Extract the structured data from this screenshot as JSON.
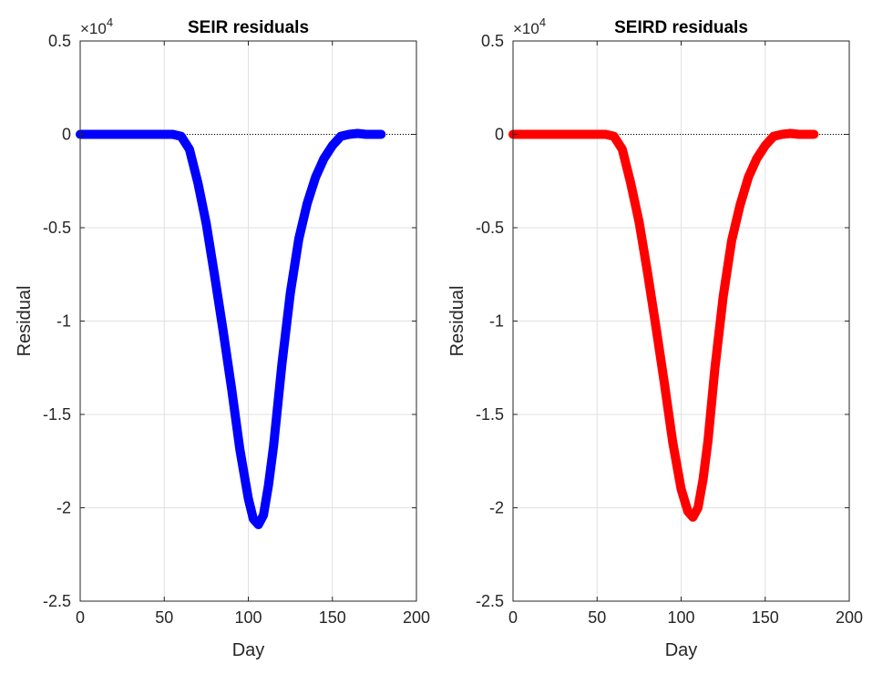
{
  "chart_data": [
    {
      "type": "line",
      "title": "SEIR residuals",
      "xlabel": "Day",
      "ylabel": "Residual",
      "xlim": [
        0,
        200
      ],
      "ylim": [
        -25000,
        5000
      ],
      "xticks": [
        0,
        50,
        100,
        150,
        200
      ],
      "yticks": [
        0.5,
        0,
        -0.5,
        -1,
        -1.5,
        -2,
        -2.5
      ],
      "ytick_labels": [
        "0.5",
        "0",
        "-0.5",
        "-1",
        "-1.5",
        "-2",
        "-2.5"
      ],
      "exponent_base": "×10",
      "exponent_power": "4",
      "grid": true,
      "series": [
        {
          "color": "#0000ff",
          "x": [
            0,
            20,
            40,
            55,
            60,
            65,
            70,
            75,
            80,
            85,
            90,
            95,
            100,
            103,
            106,
            109,
            112,
            115,
            120,
            125,
            130,
            135,
            140,
            145,
            150,
            155,
            160,
            165,
            170,
            175,
            179
          ],
          "y": [
            0,
            0,
            0,
            0,
            -100,
            -800,
            -2600,
            -4800,
            -7600,
            -10500,
            -13600,
            -16900,
            -19500,
            -20600,
            -20900,
            -20400,
            -18800,
            -16700,
            -12300,
            -8500,
            -5600,
            -3700,
            -2300,
            -1300,
            -600,
            -100,
            0,
            50,
            0,
            0,
            0
          ]
        }
      ],
      "reference_line": {
        "y": 0,
        "style": "dotted",
        "color": "#000000"
      }
    },
    {
      "type": "line",
      "title": "SEIRD residuals",
      "xlabel": "Day",
      "ylabel": "Residual",
      "xlim": [
        0,
        200
      ],
      "ylim": [
        -25000,
        5000
      ],
      "xticks": [
        0,
        50,
        100,
        150,
        200
      ],
      "yticks": [
        0.5,
        0,
        -0.5,
        -1,
        -1.5,
        -2,
        -2.5
      ],
      "ytick_labels": [
        "0.5",
        "0",
        "-0.5",
        "-1",
        "-1.5",
        "-2",
        "-2.5"
      ],
      "exponent_base": "×10",
      "exponent_power": "4",
      "grid": true,
      "series": [
        {
          "color": "#ff0000",
          "x": [
            0,
            20,
            40,
            55,
            60,
            65,
            70,
            75,
            80,
            85,
            90,
            95,
            100,
            104,
            107,
            110,
            113,
            116,
            120,
            125,
            130,
            135,
            140,
            145,
            150,
            155,
            160,
            165,
            170,
            175,
            179
          ],
          "y": [
            0,
            0,
            0,
            0,
            -100,
            -800,
            -2600,
            -4700,
            -7400,
            -10300,
            -13300,
            -16500,
            -19000,
            -20200,
            -20500,
            -20000,
            -18500,
            -16400,
            -12600,
            -8700,
            -5700,
            -3800,
            -2300,
            -1300,
            -600,
            -100,
            0,
            50,
            0,
            0,
            0
          ]
        }
      ],
      "reference_line": {
        "y": 0,
        "style": "dotted",
        "color": "#000000"
      }
    }
  ]
}
